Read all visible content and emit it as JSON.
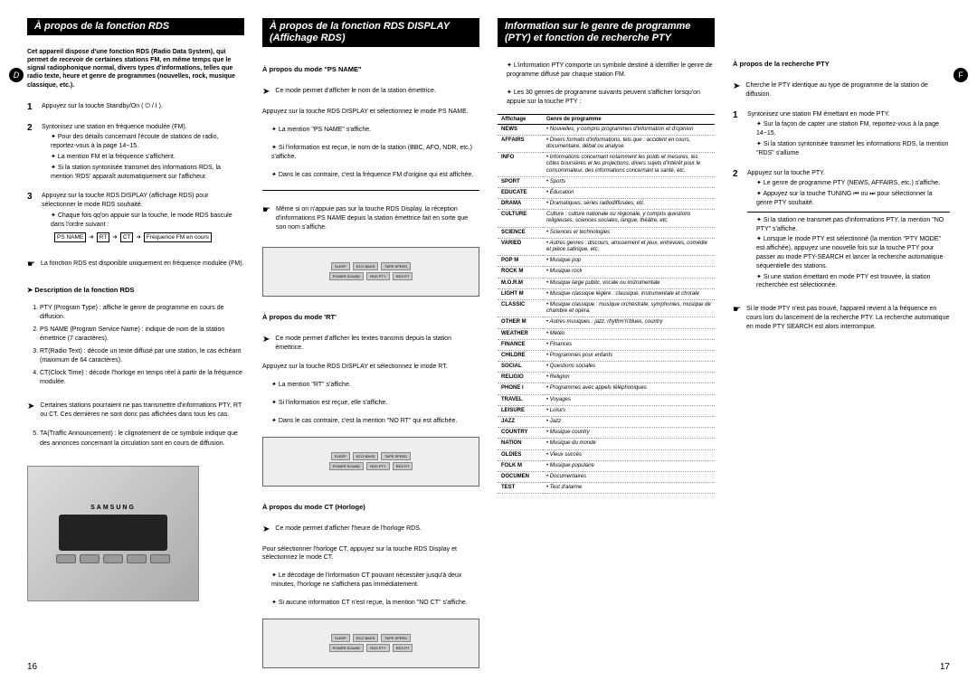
{
  "col1": {
    "header": "À propos de la fonction RDS",
    "intro": "Cet appareil dispose d'une fonction RDS (Radio Data System), qui permet de recevoir de certaines stations FM, en même temps que le signal radiophonique normal, divers types d'informations, telles que radio texte, heure et genre de programmes (nouvelles, rock, musique classique, etc.).",
    "step1": "Appuyez sur la touche Standby/On ( ⏻ / I ).",
    "step2": "Syntonisez une station en fréquence modulée (FM).",
    "step2_bullets": [
      "Pour des détails concernant l'écoute de stations de radio, reportez-vous à la page 14~15.",
      "La mention FM et la fréquence s'affichent.",
      "Si la station syntonisée transmet des informations RDS, la mention 'RDS' apparaît automatiquement sur l'afficheur."
    ],
    "step3": "Appuyez sur la touche RDS DISPLAY (affichage RDS) pour sélectionner le mode RDS souhaité.",
    "step3_bullets": [
      "Chaque fois qq'on appuie sur la touche, le mode RDS bascule dans l'ordre suivant :"
    ],
    "flow": [
      "PS NAME",
      "RT",
      "CT",
      "Fréquence FM en cours"
    ],
    "note1": "La fonction RDS est disponible uniquement en fréquence modulée (FM).",
    "desc_title": "Description de la fonction RDS",
    "desc_items": [
      "PTY (Program Type) : affiche le genre de programme en cours de diffusion.",
      "PS NAME (Program Service Name) : indique de nom de la station émettrice (7 caractères).",
      "RT(Radio Text) : décode un texte diffusé par une station, le cas échéant (maximum de 64 caractères).",
      "CT(Clock Time) : décode l'horloge en temps réel à partir de la fréquence modulée.",
      "TA(Traffic Announcement) : le clignotement de ce symbole indique que des annonces concernant la circulation sont en cours de diffusion."
    ],
    "desc_note": "Certaines stations pourraient ne pas transmettre d'informations PTY, RT ou CT. Ces dernières ne sont donc pas affichées dans tous les cas.",
    "page_num": "16"
  },
  "col2": {
    "header": "À propos de la fonction RDS DISPLAY (Affichage RDS)",
    "ps_title": "À propos du mode \"PS NAME\"",
    "ps_desc": "Ce mode permet d'afficher le nom de la station émettrice.",
    "ps_step": "Appuyez sur la touche RDS DISPLAY et sélectionnez le mode PS NAME.",
    "ps_bullets": [
      "La mention \"PS NAME\" s'affiche.",
      "Si l'information est reçue, le nom de la station (BBC, AFO, NDR, etc.) s'affiche.",
      "Dans le cas contraire, c'est la fréquence FM d'origine qui est affichée."
    ],
    "ps_note": "Même si on n'appuie pas sur la touche RDS Display, la réception d'informations PS NAME depuis la station émettrice fait en sorte que son nom s'affiche.",
    "rt_title": "À propos du mode 'RT'",
    "rt_desc": "Ce mode permet d'afficher les textes transmis depuis la station émettrice.",
    "rt_step": "Appuyez sur la touche RDS DISPLAY et sélectionnez le mode RT.",
    "rt_bullets": [
      "La mention \"RT\" s'affiche.",
      "Si l'information est reçue, elle s'affiche.",
      "Dans le cas contraire, c'est la mention \"NO RT\" qui est affichée."
    ],
    "ct_title": "À propos du mode CT (Horloge)",
    "ct_desc": "Ce mode permet d'afficher l'heure de l'horloge RDS.",
    "ct_step": "Pour sélectionner l'horloge CT, appuyez sur la touche RDS Display et sélectionnez le mode CT.",
    "ct_bullets": [
      "Le décodage de l'information CT pouvant nécessiter jusqu'à deux minutes, l'horloge ne s'affichera pas immédiatement.",
      "Si aucune information CT n'est reçue, la mention \"NO CT\" s'affiche."
    ]
  },
  "col3": {
    "header": "Information sur le genre de programme (PTY) et fonction de recherche PTY",
    "intro_bullets": [
      "L'information PTY comporte un symbole destiné à identifier le genre de programme diffusé par chaque station FM.",
      "Les 30 genres de programme suivants peuvent s'afficher lorsqu'on appuie sur la touche PTY :"
    ],
    "table_headers": [
      "Affichage",
      "Genre de programme"
    ],
    "table_rows": [
      [
        "NEWS",
        "• Nouvelles, y compris programmes d'information et d'opinion"
      ],
      [
        "AFFAIRS",
        "• Divers formats d'informations, tels que : accident en cours, documentaire, débat ou analyse."
      ],
      [
        "INFO",
        "• Informations concernant notamment les poids et mesures, les côtes boursières et les projections, divers sujets d'intérêt pour le consommateur, des informations concernant la santé, etc."
      ],
      [
        "SPORT",
        "• Sports"
      ],
      [
        "EDUCATE",
        "• Éducation"
      ],
      [
        "DRAMA",
        "• Dramatiques, séries radiodiffusées, etc."
      ],
      [
        "CULTURE",
        "Culture : culture nationale ou régionale, y compris questions religieuses, sciences sociales, langue, théâtre, etc."
      ],
      [
        "SCIENCE",
        "• Sciences et technologies"
      ],
      [
        "VARIED",
        "• Autres genres : discours, amusement et jeux, entrevues, comédie et pièce satirique, etc."
      ],
      [
        "POP M",
        "• Musique pop"
      ],
      [
        "ROCK M",
        "• Musique rock"
      ],
      [
        "M.O.R.M",
        "• Musique large public, vocale ou instrumentale"
      ],
      [
        "LIGHT M",
        "• Musique classique légère : classique, instrumentale et chorale"
      ],
      [
        "CLASSIC",
        "• Musique classique : musique orchestrale, symphonies, musique de chambre et opéra."
      ],
      [
        "OTHER M",
        "• Autres musiques : jazz, rhythm'n'blues, country"
      ],
      [
        "WEATHER",
        "• Météo"
      ],
      [
        "FINANCE",
        "• Finances"
      ],
      [
        "CHILDRE",
        "• Programmes pour enfants"
      ],
      [
        "SOCIAL",
        "• Questions sociales"
      ],
      [
        "RELIGIO",
        "• Religion"
      ],
      [
        "PHONE I",
        "• Programmes avec appels téléphoniques"
      ],
      [
        "TRAVEL",
        "• Voyages"
      ],
      [
        "LEISURE",
        "• Loisirs"
      ],
      [
        "JAZZ",
        "• Jazz"
      ],
      [
        "COUNTRY",
        "• Musique country"
      ],
      [
        "NATION",
        "• Musique du monde"
      ],
      [
        "OLDIES",
        "• Vieux succès"
      ],
      [
        "FOLK M",
        "• Musique populaire"
      ],
      [
        "DOCUMEN",
        "• Documentaires"
      ],
      [
        "TEST",
        "• Test d'alarme"
      ]
    ]
  },
  "col4": {
    "search_title": "À propos de la recherche PTY",
    "search_desc": "Cherche le PTY identique au type de programme de la station de diffusion.",
    "step1": "Syntonisez une station FM émettant en mode PTY.",
    "step1_bullets": [
      "Sur la façon de capter une station FM, reportez-vous à la page 14~15.",
      "Si la station syntonisée transmet les informations RDS, la mention \"RDS\" s'allume"
    ],
    "step2": "Appuyez sur la touche PTY.",
    "step2_bullets": [
      "Le genre de programme PTY (NEWS, AFFAIRS, etc.) s'affiche.",
      "Appuyez sur la touche TUNING ⏮ ou ⏭ pour sélectionner la genre PTY souhaité."
    ],
    "step2_extra": [
      "Si la station ne transmet pas d'informations PTY, la mention \"NO PTY\" s'affiche.",
      "Lorsque le mode PTY est sélectionné (la mention \"PTY MODE\" est affichée), appuyez une nouvelle fois sur la touche PTY pour passer au mode PTY-SEARCH et lancer la recherche automatique séquentielle des stations.",
      "Si une station émettant en mode PTY est trouvée, la station recherchée est sélectionnée."
    ],
    "final_note": "Si le mode PTY n'est pas trouvé, l'appareil revient à la fréquence en cours lors du lancement de la recherche PTY. La recherche automatique en mode PTY SEARCH est alors interrompue.",
    "page_num": "17"
  }
}
